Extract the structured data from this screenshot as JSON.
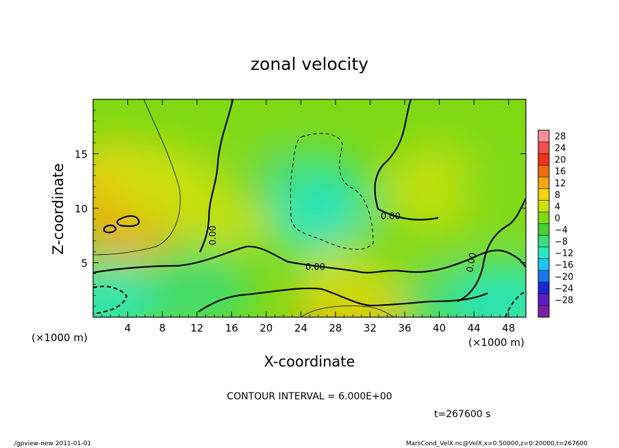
{
  "chart_data": {
    "type": "heatmap",
    "title": "zonal velocity",
    "xlabel": "X-coordinate",
    "ylabel": "Z-coordinate",
    "x_multiplier_label": "(×1000 m)",
    "y_multiplier_label": "(×1000 m)",
    "xlim": [
      0,
      50
    ],
    "ylim": [
      0,
      20
    ],
    "xticks": [
      4,
      8,
      12,
      16,
      20,
      24,
      28,
      32,
      36,
      40,
      44,
      48
    ],
    "yticks": [
      5,
      10,
      15
    ],
    "colorbar": {
      "levels": [
        28,
        24,
        20,
        16,
        12,
        8,
        4,
        0,
        -4,
        -8,
        -12,
        -16,
        -20,
        -24,
        -28
      ],
      "colors": [
        "#f49090",
        "#f05050",
        "#ef3419",
        "#f26a10",
        "#f4a70f",
        "#f6d30a",
        "#cbe20f",
        "#80d916",
        "#44d230",
        "#39dd78",
        "#27e6c6",
        "#1cc6f2",
        "#1b78ea",
        "#1a27d3",
        "#5a1fbf",
        "#7b1fa6"
      ]
    },
    "contour_labels": [
      "0.00",
      "0.00",
      "0.00",
      "0.00"
    ],
    "contour_interval": "CONTOUR INTERVAL = 6.000E+00",
    "time": "t=267600 s",
    "field": [
      {
        "x": 2,
        "z": 1.5,
        "u": -12
      },
      {
        "x": 3,
        "z": 12.5,
        "u": 10
      },
      {
        "x": 4,
        "z": 9,
        "u": 12
      },
      {
        "x": 8,
        "z": 12,
        "u": 6
      },
      {
        "x": 12,
        "z": 2.5,
        "u": -6
      },
      {
        "x": 15,
        "z": 10,
        "u": 4
      },
      {
        "x": 20,
        "z": 14,
        "u": 3
      },
      {
        "x": 25,
        "z": 12,
        "u": -6
      },
      {
        "x": 27,
        "z": 9,
        "u": -9
      },
      {
        "x": 30,
        "z": 0.5,
        "u": 12
      },
      {
        "x": 30,
        "z": 3,
        "u": 4
      },
      {
        "x": 36,
        "z": 7,
        "u": 1
      },
      {
        "x": 40,
        "z": 12,
        "u": 5
      },
      {
        "x": 42,
        "z": 0.8,
        "u": -8
      },
      {
        "x": 48,
        "z": 1.5,
        "u": -10
      },
      {
        "x": 48,
        "z": 12,
        "u": 3
      }
    ]
  },
  "footer": {
    "left": "./gpview-new   2011-01-01",
    "right": "MarsCond_VelX.nc@VelX,x=0:50000,z=0:20000,t=267600"
  }
}
